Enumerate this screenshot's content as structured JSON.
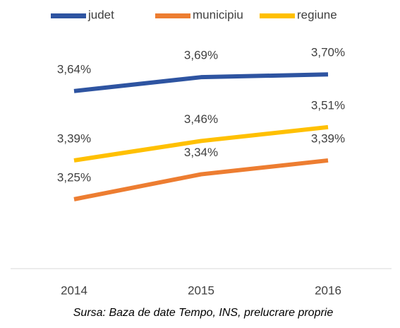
{
  "chart_data": {
    "type": "line",
    "categories": [
      "2014",
      "2015",
      "2016"
    ],
    "series": [
      {
        "name": "judet",
        "color": "#2e54a1",
        "values": [
          3.64,
          3.69,
          3.7
        ],
        "value_labels": [
          "3,64%",
          "3,69%",
          "3,70%"
        ]
      },
      {
        "name": "municipiu",
        "color": "#ed7d31",
        "values": [
          3.25,
          3.34,
          3.39
        ],
        "value_labels": [
          "3,25%",
          "3,34%",
          "3,39%"
        ]
      },
      {
        "name": "regiune",
        "color": "#ffc000",
        "values": [
          3.39,
          3.46,
          3.51
        ],
        "value_labels": [
          "3,39%",
          "3,46%",
          "3,51%"
        ]
      }
    ],
    "ylim": [
      3.0,
      3.8
    ],
    "legend": "top",
    "source": "Sursa: Baza de date Tempo, INS, prelucrare proprie"
  }
}
